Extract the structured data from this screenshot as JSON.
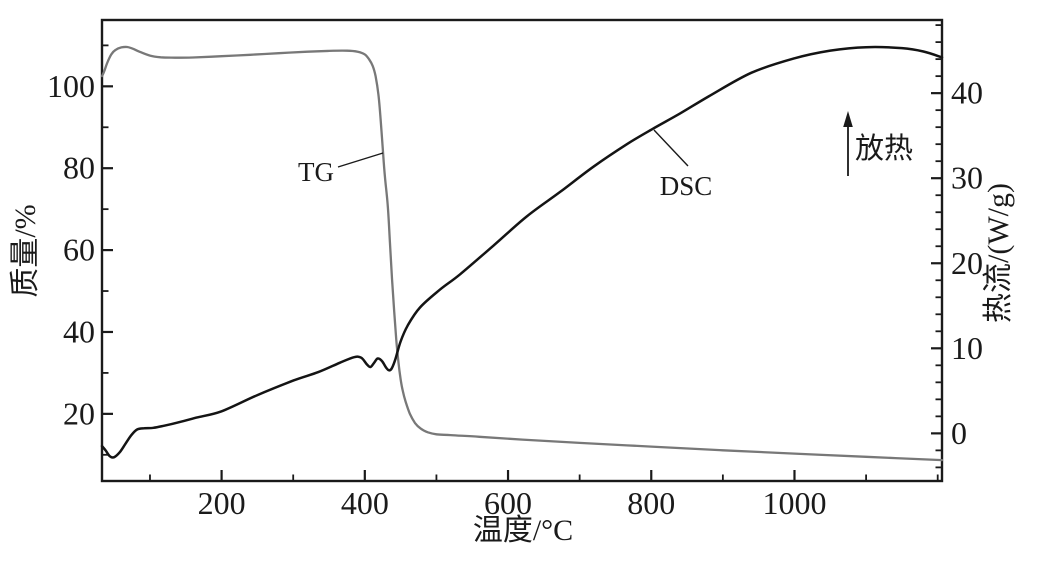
{
  "figure": {
    "background": "#ffffff",
    "axis_color": "#1a1a1a"
  },
  "labels": {
    "x_axis_title": "温度/°C",
    "y_left_axis_title": "质量/%",
    "y_right_axis_title": "热流/(W/g)",
    "tg_label": "TG",
    "dsc_label": "DSC",
    "exo_label": "放热"
  },
  "chart_data": {
    "type": "line",
    "title": "",
    "xlabel": "温度/°C",
    "ylabel_left": "质量/%",
    "ylabel_right": "热流/(W/g)",
    "x_range": [
      33,
      1206
    ],
    "y_left_range": [
      3.6,
      116.2
    ],
    "y_right_range": [
      -5.6,
      48.6
    ],
    "x_major_ticks": [
      200,
      400,
      600,
      800,
      1000
    ],
    "x_minor_ticks": [
      100,
      300,
      500,
      700,
      900,
      1100,
      1200
    ],
    "y_left_major_ticks": [
      20,
      40,
      60,
      80,
      100
    ],
    "y_left_minor_ticks": [
      10,
      30,
      50,
      70,
      90,
      110
    ],
    "y_right_major_ticks": [
      0,
      10,
      20,
      30,
      40
    ],
    "y_right_minor_ticks": [
      -4,
      -2,
      2,
      4,
      6,
      8,
      12,
      14,
      16,
      18,
      22,
      24,
      26,
      28,
      32,
      34,
      36,
      38,
      42,
      44,
      46,
      48
    ],
    "grid": false,
    "legend_position": "inline labels with leader lines",
    "annotations": {
      "exothermic": {
        "text": "放热",
        "arrow_direction": "up"
      }
    },
    "series": [
      {
        "name": "TG",
        "axis": "left",
        "unit": "%",
        "color": "#787878",
        "width": 2.3,
        "points": [
          [
            33,
            102.5
          ],
          [
            36,
            103.6
          ],
          [
            40,
            105.6
          ],
          [
            46,
            107.8
          ],
          [
            52,
            108.9
          ],
          [
            60,
            109.5
          ],
          [
            68,
            109.6
          ],
          [
            76,
            109.2
          ],
          [
            86,
            108.4
          ],
          [
            100,
            107.5
          ],
          [
            115,
            107.1
          ],
          [
            135,
            107.0
          ],
          [
            160,
            107.05
          ],
          [
            200,
            107.35
          ],
          [
            240,
            107.7
          ],
          [
            280,
            108.1
          ],
          [
            320,
            108.45
          ],
          [
            350,
            108.65
          ],
          [
            375,
            108.7
          ],
          [
            390,
            108.45
          ],
          [
            400,
            107.8
          ],
          [
            406,
            106.6
          ],
          [
            411,
            105.0
          ],
          [
            415,
            102.5
          ],
          [
            419,
            98.0
          ],
          [
            422,
            92.0
          ],
          [
            425,
            85.0
          ],
          [
            428,
            78.0
          ],
          [
            432,
            71.0
          ],
          [
            435,
            62.0
          ],
          [
            438,
            53.0
          ],
          [
            441,
            45.0
          ],
          [
            444,
            38.0
          ],
          [
            447,
            32.5
          ],
          [
            450,
            28.5
          ],
          [
            453,
            25.6
          ],
          [
            457,
            23.0
          ],
          [
            463,
            20.0
          ],
          [
            470,
            17.8
          ],
          [
            478,
            16.4
          ],
          [
            488,
            15.5
          ],
          [
            500,
            15.0
          ],
          [
            520,
            14.8
          ],
          [
            560,
            14.4
          ],
          [
            620,
            13.7
          ],
          [
            700,
            12.9
          ],
          [
            800,
            12.0
          ],
          [
            900,
            11.1
          ],
          [
            1000,
            10.3
          ],
          [
            1100,
            9.5
          ],
          [
            1206,
            8.7
          ]
        ]
      },
      {
        "name": "DSC",
        "axis": "right",
        "unit": "W/g",
        "color": "#141414",
        "width": 2.5,
        "points": [
          [
            33,
            -1.5
          ],
          [
            38,
            -2.0
          ],
          [
            44,
            -2.7
          ],
          [
            50,
            -2.8
          ],
          [
            58,
            -2.2
          ],
          [
            66,
            -1.2
          ],
          [
            74,
            -0.2
          ],
          [
            82,
            0.45
          ],
          [
            92,
            0.6
          ],
          [
            105,
            0.65
          ],
          [
            120,
            0.9
          ],
          [
            140,
            1.3
          ],
          [
            165,
            1.85
          ],
          [
            200,
            2.6
          ],
          [
            250,
            4.5
          ],
          [
            300,
            6.2
          ],
          [
            335,
            7.2
          ],
          [
            365,
            8.3
          ],
          [
            385,
            8.95
          ],
          [
            395,
            8.9
          ],
          [
            403,
            8.1
          ],
          [
            408,
            7.8
          ],
          [
            413,
            8.3
          ],
          [
            418,
            8.8
          ],
          [
            424,
            8.5
          ],
          [
            430,
            7.7
          ],
          [
            434,
            7.4
          ],
          [
            438,
            7.7
          ],
          [
            443,
            8.8
          ],
          [
            450,
            10.8
          ],
          [
            460,
            12.7
          ],
          [
            477,
            14.8
          ],
          [
            505,
            16.9
          ],
          [
            533,
            18.7
          ],
          [
            580,
            22.1
          ],
          [
            626,
            25.5
          ],
          [
            673,
            28.4
          ],
          [
            720,
            31.4
          ],
          [
            766,
            34.0
          ],
          [
            800,
            35.7
          ],
          [
            840,
            37.6
          ],
          [
            880,
            39.6
          ],
          [
            940,
            42.4
          ],
          [
            1000,
            44.1
          ],
          [
            1050,
            45.0
          ],
          [
            1100,
            45.4
          ],
          [
            1150,
            45.3
          ],
          [
            1180,
            44.9
          ],
          [
            1206,
            44.2
          ]
        ]
      }
    ]
  }
}
